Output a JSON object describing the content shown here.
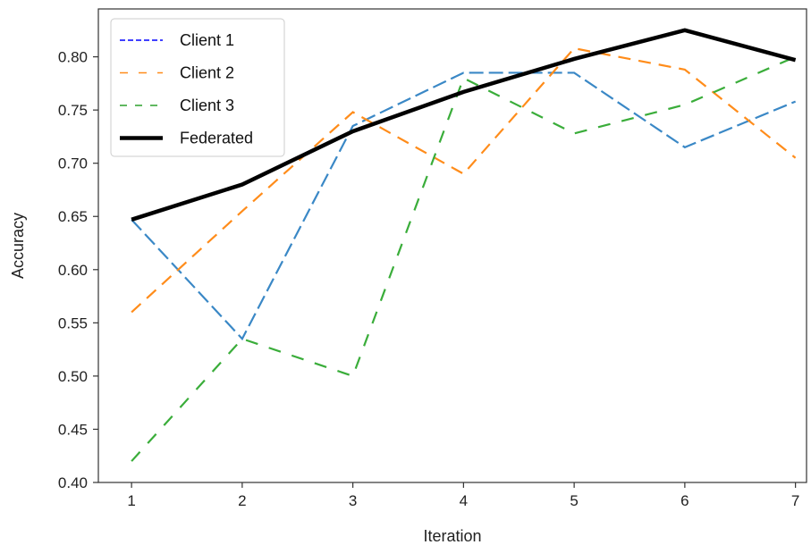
{
  "chart_data": {
    "type": "line",
    "xlabel": "Iteration",
    "ylabel": "Accuracy",
    "xlim": [
      0.7,
      7.1
    ],
    "ylim": [
      0.4,
      0.845
    ],
    "xticks": [
      1,
      2,
      3,
      4,
      5,
      6,
      7
    ],
    "yticks": [
      0.4,
      0.45,
      0.5,
      0.55,
      0.6,
      0.65,
      0.7,
      0.75,
      0.8
    ],
    "ytick_labels": [
      "0.40",
      "0.45",
      "0.50",
      "0.55",
      "0.60",
      "0.65",
      "0.70",
      "0.75",
      "0.80"
    ],
    "xtick_labels": [
      "1",
      "2",
      "3",
      "4",
      "5",
      "6",
      "7"
    ],
    "x": [
      1,
      2,
      3,
      4,
      5,
      6,
      7
    ],
    "legend_position": "top-left",
    "series": [
      {
        "name": "Client 1",
        "legend_color": "#0000ff",
        "color": "#3a88c6",
        "dash": "16,6",
        "width": 2.2,
        "values": [
          0.647,
          0.535,
          0.735,
          0.785,
          0.785,
          0.715,
          0.758
        ]
      },
      {
        "name": "Client 2",
        "legend_color": "#ff8c1a",
        "color": "#ff8c1a",
        "dash": "14,9",
        "width": 2.2,
        "values": [
          0.56,
          0.655,
          0.748,
          0.69,
          0.808,
          0.788,
          0.705
        ]
      },
      {
        "name": "Client 3",
        "legend_color": "#2ca02c",
        "color": "#3aad3a",
        "dash": "14,13",
        "width": 2.2,
        "values": [
          0.42,
          0.535,
          0.5,
          0.78,
          0.728,
          0.755,
          0.8
        ]
      },
      {
        "name": "Federated",
        "legend_color": "#000000",
        "color": "#000000",
        "dash": "",
        "width": 4.5,
        "values": [
          0.647,
          0.68,
          0.73,
          0.767,
          0.798,
          0.825,
          0.797
        ]
      }
    ]
  }
}
